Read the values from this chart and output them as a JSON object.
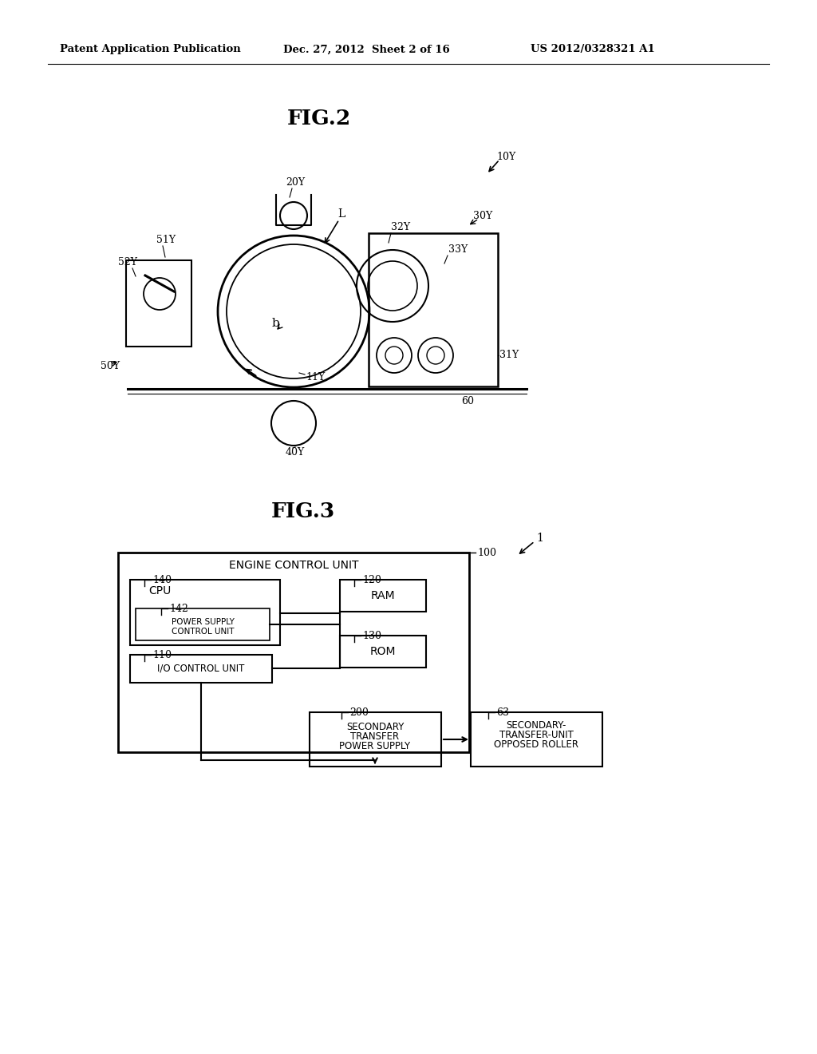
{
  "bg_color": "#ffffff",
  "header_left": "Patent Application Publication",
  "header_center": "Dec. 27, 2012  Sheet 2 of 16",
  "header_right": "US 2012/0328321 A1",
  "fig2_title": "FIG.2",
  "fig3_title": "FIG.3"
}
